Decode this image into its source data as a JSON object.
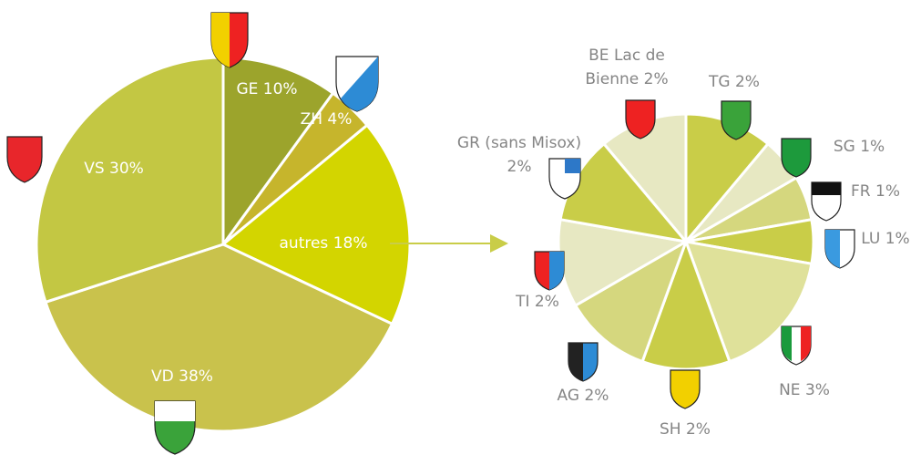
{
  "chart_data": [
    {
      "type": "pie",
      "values": [
        10,
        4,
        18,
        38,
        30
      ],
      "value_labels": [
        "GE 10%",
        "ZH 4%",
        "autres 18%",
        "VD 38%",
        "VS 30%"
      ],
      "colors": [
        "#9ca42c",
        "#c6b52c",
        "#d3d500",
        "#c9c24c",
        "#c3c743"
      ]
    },
    {
      "type": "pie",
      "values": [
        2,
        1,
        1,
        1,
        3,
        2,
        2,
        2,
        2,
        2
      ],
      "value_labels": [
        "TG 2%",
        "SG 1%",
        "FR 1%",
        "LU 1%",
        "NE 3%",
        "SH 2%",
        "AG 2%",
        "TI 2%",
        "GR (sans Misox)\n2%",
        "BE Lac de\nBienne 2%"
      ],
      "colors": [
        "#c9cd48",
        "#e7e8c2",
        "#d5d77e",
        "#c9cd48",
        "#dfe19a",
        "#c9cd48",
        "#d5d77e",
        "#e7e8c2",
        "#c9cd48",
        "#e7e8c2"
      ]
    }
  ]
}
